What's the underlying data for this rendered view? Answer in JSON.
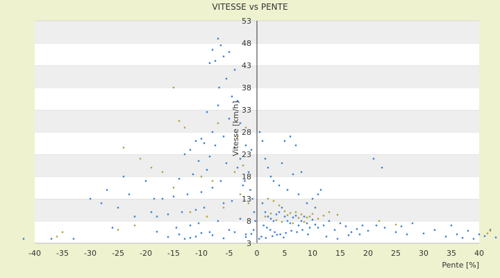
{
  "chart_data": {
    "type": "scatter",
    "title": "VITESSE vs PENTE",
    "xlabel": "Pente [%]",
    "ylabel": "Vitesse [km/h]",
    "xlim": [
      -40,
      40
    ],
    "ylim": [
      3,
      53
    ],
    "x_ticks": [
      "-40",
      "-35",
      "-30",
      "-25",
      "-20",
      "-15",
      "-10",
      "-5",
      "0",
      "5",
      "10",
      "15",
      "20",
      "25",
      "30",
      "35",
      "40"
    ],
    "y_ticks": [
      "3",
      "8",
      "13",
      "18",
      "23",
      "28",
      "33",
      "38",
      "43",
      "48",
      "53"
    ],
    "grid": "horizontal bands",
    "series": [
      {
        "color": "#3a7fd5",
        "points": [
          [
            -7,
            49
          ],
          [
            -6.5,
            47.5
          ],
          [
            -8,
            46.5
          ],
          [
            -5,
            46
          ],
          [
            -6,
            45
          ],
          [
            -7.5,
            44
          ],
          [
            -8.5,
            43.5
          ],
          [
            -4,
            42
          ],
          [
            -5.5,
            40
          ],
          [
            -6.8,
            38
          ],
          [
            -4.5,
            36
          ],
          [
            -3.5,
            35
          ],
          [
            -7,
            34
          ],
          [
            -9,
            32.5
          ],
          [
            -5,
            31
          ],
          [
            -3,
            30
          ],
          [
            -8,
            28
          ],
          [
            -6,
            27
          ],
          [
            -10,
            26.5
          ],
          [
            -11,
            26
          ],
          [
            -9.5,
            25.5
          ],
          [
            -7.5,
            25
          ],
          [
            -4,
            24.5
          ],
          [
            -12,
            24
          ],
          [
            -13,
            23
          ],
          [
            -8.5,
            22.5
          ],
          [
            -10.5,
            21.5
          ],
          [
            -5.5,
            21
          ],
          [
            -3.5,
            20
          ],
          [
            -9,
            19.5
          ],
          [
            -11.5,
            18.5
          ],
          [
            -14,
            17.5
          ],
          [
            -6.5,
            17
          ],
          [
            -2.5,
            16
          ],
          [
            -8,
            15.5
          ],
          [
            -10,
            14.5
          ],
          [
            -12.5,
            14
          ],
          [
            -15,
            13.5
          ],
          [
            -17,
            13
          ],
          [
            -4.5,
            12.5
          ],
          [
            -6,
            12
          ],
          [
            -9.5,
            11
          ],
          [
            -11,
            10.5
          ],
          [
            -13.5,
            10
          ],
          [
            -16,
            9.5
          ],
          [
            -18,
            9
          ],
          [
            -3,
            8.5
          ],
          [
            -7,
            8
          ],
          [
            -10.5,
            7.5
          ],
          [
            -12,
            7
          ],
          [
            -14.5,
            6.5
          ],
          [
            -5,
            6
          ],
          [
            -8.5,
            5.5
          ],
          [
            -2,
            5
          ],
          [
            -11,
            4.5
          ],
          [
            -13,
            4
          ],
          [
            -30,
            13
          ],
          [
            -28,
            12
          ],
          [
            -25,
            11
          ],
          [
            -23,
            14
          ],
          [
            -22,
            9
          ],
          [
            -20,
            17
          ],
          [
            -24,
            18
          ],
          [
            -19,
            10
          ],
          [
            -27,
            15
          ],
          [
            -26,
            6.5
          ],
          [
            -18.5,
            13
          ],
          [
            -37,
            4
          ],
          [
            -33,
            4
          ],
          [
            -42,
            4
          ],
          [
            -3,
            22
          ],
          [
            -2,
            25
          ],
          [
            -1,
            24
          ],
          [
            -1.5,
            19
          ],
          [
            -2.2,
            17
          ],
          [
            -1.2,
            15
          ],
          [
            -0.8,
            13
          ],
          [
            -0.5,
            10
          ],
          [
            -0.3,
            8
          ],
          [
            -0.6,
            6
          ],
          [
            0.5,
            28
          ],
          [
            1,
            26
          ],
          [
            1.5,
            22
          ],
          [
            2,
            20
          ],
          [
            2.5,
            18
          ],
          [
            3,
            17
          ],
          [
            4,
            16
          ],
          [
            5,
            26
          ],
          [
            6,
            27
          ],
          [
            7,
            25
          ],
          [
            4.5,
            21
          ],
          [
            8,
            19
          ],
          [
            6.5,
            18.5
          ],
          [
            5.5,
            15
          ],
          [
            7.5,
            14
          ],
          [
            9,
            12
          ],
          [
            10,
            13
          ],
          [
            11,
            14
          ],
          [
            11.5,
            15
          ],
          [
            10.5,
            11
          ],
          [
            1,
            12
          ],
          [
            1.5,
            10
          ],
          [
            2,
            9
          ],
          [
            2.5,
            8.5
          ],
          [
            3,
            8
          ],
          [
            3.5,
            9.5
          ],
          [
            4,
            10
          ],
          [
            4.5,
            11
          ],
          [
            5,
            9
          ],
          [
            5.5,
            8
          ],
          [
            6,
            7.5
          ],
          [
            6.5,
            8.8
          ],
          [
            7,
            9.2
          ],
          [
            7.5,
            7
          ],
          [
            8,
            8
          ],
          [
            8.5,
            9
          ],
          [
            9,
            7.5
          ],
          [
            9.5,
            6.5
          ],
          [
            10,
            8.3
          ],
          [
            10.5,
            7.2
          ],
          [
            1.2,
            7
          ],
          [
            1.8,
            6.5
          ],
          [
            2.4,
            6
          ],
          [
            3.2,
            5.5
          ],
          [
            4.2,
            5
          ],
          [
            5.2,
            5.3
          ],
          [
            6.2,
            5.8
          ],
          [
            7.2,
            5.5
          ],
          [
            8.2,
            6
          ],
          [
            9.2,
            5
          ],
          [
            11,
            6.5
          ],
          [
            12,
            7
          ],
          [
            13,
            8
          ],
          [
            14,
            6
          ],
          [
            15,
            7.5
          ],
          [
            16,
            6.8
          ],
          [
            17,
            5.5
          ],
          [
            18,
            6.2
          ],
          [
            19,
            7
          ],
          [
            20,
            5.8
          ],
          [
            21,
            22
          ],
          [
            22.5,
            20
          ],
          [
            21.5,
            7
          ],
          [
            23,
            6.5
          ],
          [
            25,
            5.5
          ],
          [
            26,
            6.8
          ],
          [
            27,
            5
          ],
          [
            28,
            7.5
          ],
          [
            30,
            5.2
          ],
          [
            32,
            6
          ],
          [
            34,
            4.5
          ],
          [
            35,
            7
          ],
          [
            36,
            5
          ],
          [
            37,
            4.2
          ],
          [
            38,
            5.8
          ],
          [
            39,
            4
          ],
          [
            40,
            5
          ],
          [
            41,
            4.6
          ],
          [
            42,
            6
          ],
          [
            43,
            4.3
          ],
          [
            12.5,
            4.5
          ],
          [
            14.5,
            4
          ],
          [
            16.5,
            4.8
          ],
          [
            18.5,
            5
          ],
          [
            0.4,
            4
          ],
          [
            0.8,
            4.5
          ],
          [
            1.6,
            4.2
          ],
          [
            2.8,
            4.6
          ],
          [
            3.6,
            4.9
          ],
          [
            4.8,
            4.3
          ],
          [
            -14,
            5
          ],
          [
            -12,
            4.2
          ],
          [
            -10,
            5.3
          ],
          [
            -8,
            4.8
          ],
          [
            -6,
            4.1
          ],
          [
            -4,
            5.5
          ],
          [
            -2,
            4.4
          ],
          [
            -1,
            5.1
          ],
          [
            -16,
            4.4
          ],
          [
            -18,
            5.6
          ]
        ]
      },
      {
        "color": "#b3a23a",
        "points": [
          [
            -15,
            38
          ],
          [
            -14,
            30.5
          ],
          [
            -13,
            29
          ],
          [
            -7,
            30
          ],
          [
            -24,
            24.5
          ],
          [
            -21,
            22
          ],
          [
            -19,
            20
          ],
          [
            -17,
            19
          ],
          [
            -15,
            15.5
          ],
          [
            -22,
            7
          ],
          [
            -25,
            6
          ],
          [
            -36,
            4.5
          ],
          [
            -35,
            5.5
          ],
          [
            -12,
            10
          ],
          [
            -9,
            9
          ],
          [
            -6,
            11
          ],
          [
            -3,
            14
          ],
          [
            -1.5,
            12
          ],
          [
            2,
            13
          ],
          [
            3,
            12.5
          ],
          [
            4,
            11.5
          ],
          [
            5,
            10.2
          ],
          [
            6,
            9.8
          ],
          [
            7,
            10
          ],
          [
            8,
            9.5
          ],
          [
            9,
            8.8
          ],
          [
            10,
            9.6
          ],
          [
            11,
            8.5
          ],
          [
            12,
            9.2
          ],
          [
            13,
            10
          ],
          [
            1.5,
            9
          ],
          [
            2.5,
            9.7
          ],
          [
            3.5,
            8.2
          ],
          [
            4.5,
            7.8
          ],
          [
            5.5,
            9.3
          ],
          [
            6.5,
            7.5
          ],
          [
            7.5,
            8.7
          ],
          [
            8.5,
            7.8
          ],
          [
            9.5,
            9
          ],
          [
            14.5,
            9.4
          ],
          [
            22,
            8
          ],
          [
            25,
            7.2
          ],
          [
            41.5,
            5.2
          ],
          [
            42,
            5.8
          ],
          [
            -10,
            18
          ],
          [
            -8,
            17
          ],
          [
            -4,
            19
          ],
          [
            -2.5,
            20.5
          ],
          [
            -3.5,
            27
          ],
          [
            -2,
            29
          ]
        ]
      }
    ]
  }
}
